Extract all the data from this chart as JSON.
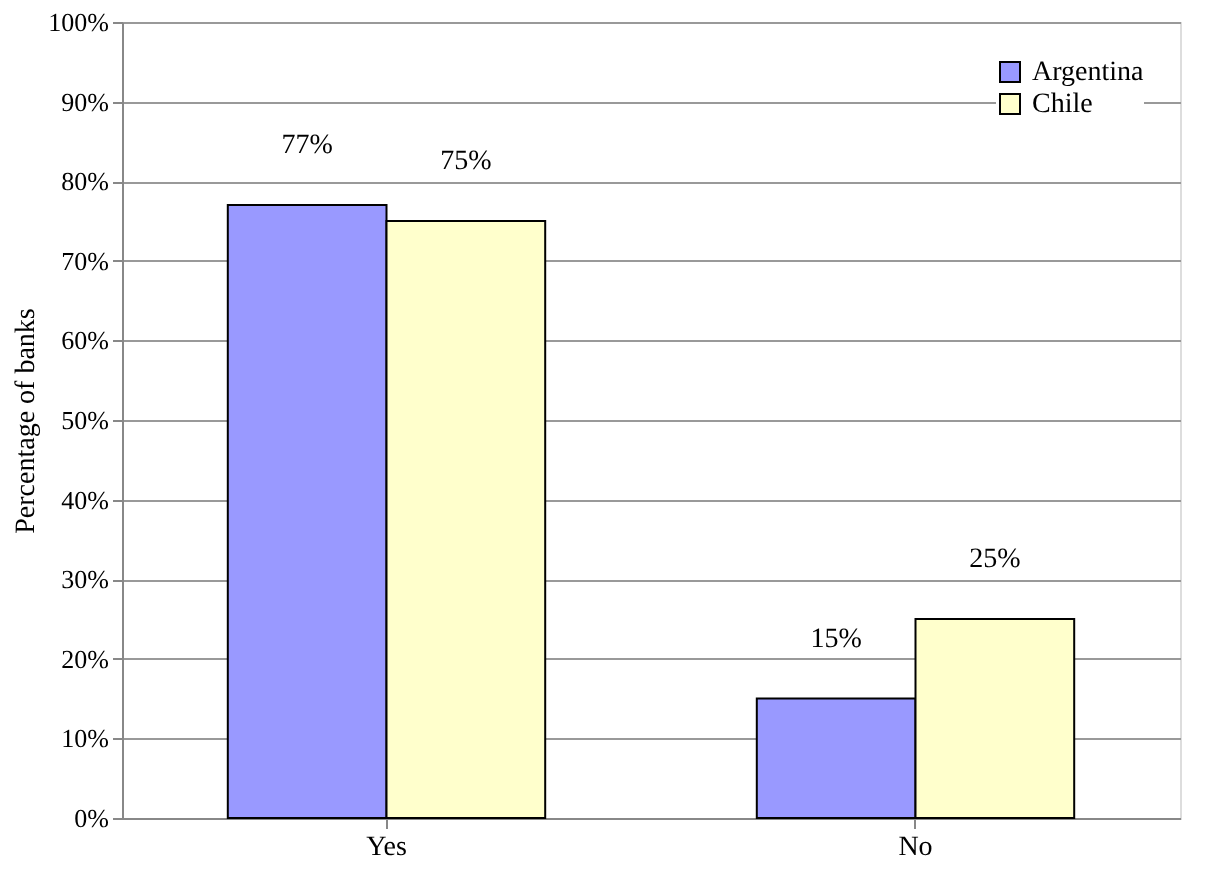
{
  "chart_data": {
    "type": "bar",
    "ylabel": "Percentage of banks",
    "categories": [
      "Yes",
      "No"
    ],
    "series": [
      {
        "name": "Argentina",
        "color": "#9999ff",
        "values": [
          77,
          15
        ],
        "value_labels": [
          "77%",
          "15%"
        ]
      },
      {
        "name": "Chile",
        "color": "#ffffcc",
        "values": [
          75,
          25
        ],
        "value_labels": [
          "75%",
          "25%"
        ]
      }
    ],
    "ylim": [
      0,
      100
    ],
    "yticks": [
      {
        "value": 0,
        "label": "0%"
      },
      {
        "value": 10,
        "label": "10%"
      },
      {
        "value": 20,
        "label": "20%"
      },
      {
        "value": 30,
        "label": "30%"
      },
      {
        "value": 40,
        "label": "40%"
      },
      {
        "value": 50,
        "label": "50%"
      },
      {
        "value": 60,
        "label": "60%"
      },
      {
        "value": 70,
        "label": "70%"
      },
      {
        "value": 80,
        "label": "80%"
      },
      {
        "value": 90,
        "label": "90%"
      },
      {
        "value": 100,
        "label": "100%"
      }
    ],
    "grid": "y",
    "legend": "top right"
  }
}
